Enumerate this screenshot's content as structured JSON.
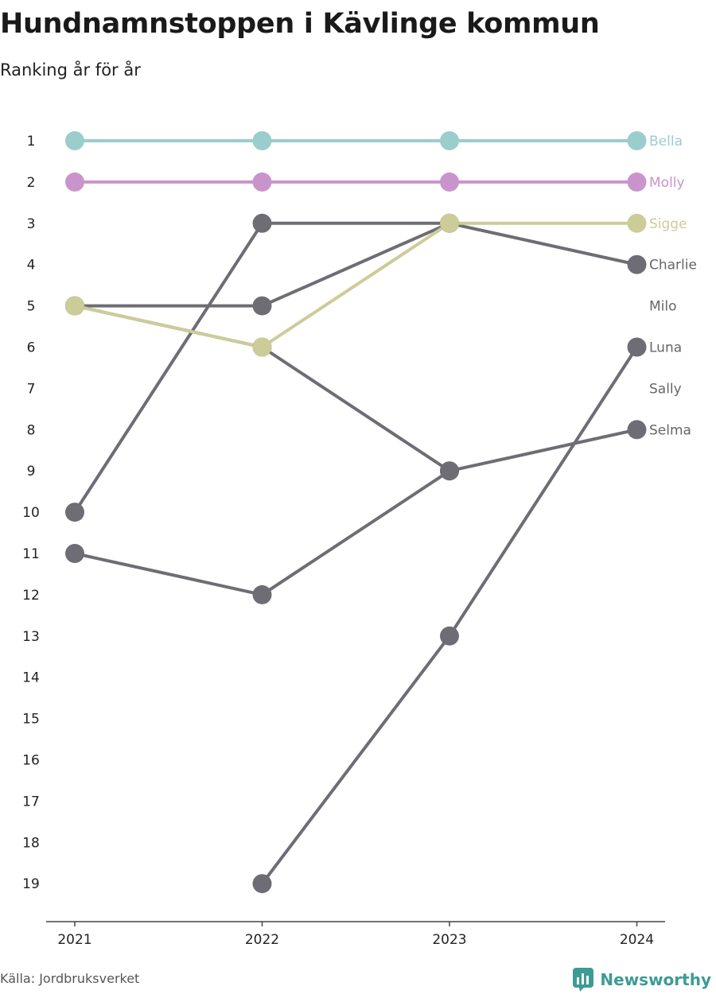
{
  "header": {
    "title": "Hundnamnstoppen i Kävlinge kommun",
    "subtitle": "Ranking år för år"
  },
  "footer": {
    "source": "Källa: Jordbruksverket",
    "brand": "Newsworthy"
  },
  "colors": {
    "Bella": "#9bcdcd",
    "Molly": "#c994cc",
    "Sigge": "#cccc99",
    "other": "#6e6d75",
    "axis": "#444444"
  },
  "chart_data": {
    "type": "line",
    "chart_kind": "bump chart",
    "x": [
      "2021",
      "2022",
      "2023",
      "2024"
    ],
    "y_axis": {
      "reversed": true,
      "range": [
        1,
        19
      ],
      "tick_labels": [
        "1",
        "2",
        "3",
        "4",
        "5",
        "6",
        "7",
        "8",
        "9",
        "10",
        "11",
        "12",
        "13",
        "14",
        "15",
        "16",
        "17",
        "18",
        "19"
      ]
    },
    "grid": false,
    "legend": "direct end labels",
    "end_labels": [
      "Bella",
      "Molly",
      "Sigge",
      "Charlie",
      "Milo",
      "Luna",
      "Sally",
      "Selma"
    ],
    "series": [
      {
        "name": "Bella",
        "values": [
          1,
          1,
          1,
          1
        ],
        "highlight": true
      },
      {
        "name": "Molly",
        "values": [
          2,
          2,
          2,
          2
        ],
        "highlight": true
      },
      {
        "name": "Sigge",
        "values": [
          5,
          6,
          3,
          3
        ],
        "highlight": true
      },
      {
        "name": "Charlie",
        "values": [
          5,
          5,
          3,
          4
        ]
      },
      {
        "name": "Milo",
        "values": [
          10,
          3,
          3,
          null
        ]
      },
      {
        "name": "Luna",
        "values": [
          null,
          19,
          13,
          6
        ]
      },
      {
        "name": "Sally",
        "values": [
          5,
          6,
          9,
          null
        ]
      },
      {
        "name": "Selma",
        "values": [
          11,
          12,
          9,
          8
        ]
      }
    ]
  }
}
